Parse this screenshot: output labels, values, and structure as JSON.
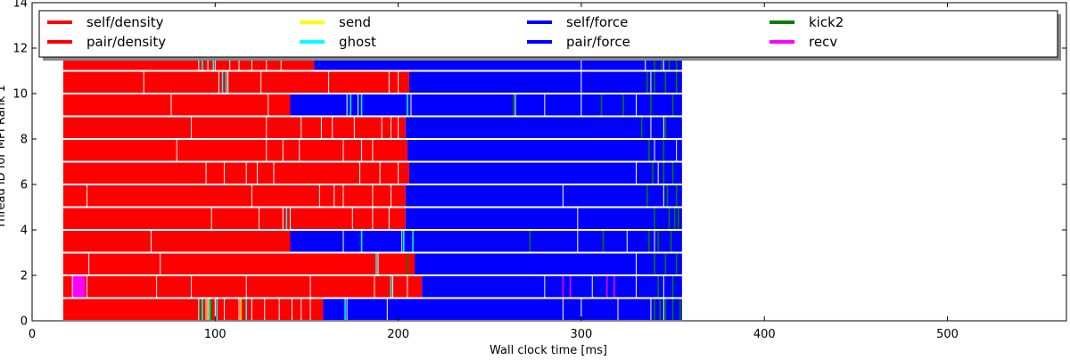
{
  "chart_data": {
    "type": "bar",
    "orientation": "horizontal",
    "layout": "task-timeline",
    "xlabel": "Wall clock time [ms]",
    "ylabel": "Thread ID for MPI Rank 1",
    "xlim": [
      0,
      565
    ],
    "ylim": [
      0,
      14
    ],
    "x_ticks": [
      0,
      100,
      200,
      300,
      400,
      500
    ],
    "y_ticks": [
      0,
      2,
      4,
      6,
      8,
      10,
      12,
      14
    ],
    "grid": false,
    "legend_position": "top",
    "legend": [
      {
        "name": "self/density",
        "color": "#ff0000"
      },
      {
        "name": "pair/density",
        "color": "#ff0000"
      },
      {
        "name": "send",
        "color": "#ffff00"
      },
      {
        "name": "ghost",
        "color": "#00ffff"
      },
      {
        "name": "self/force",
        "color": "#0000ff"
      },
      {
        "name": "pair/force",
        "color": "#0000ff"
      },
      {
        "name": "kick2",
        "color": "#008000"
      },
      {
        "name": "recv",
        "color": "#ff00ff"
      }
    ],
    "colors": {
      "density": "#ff0000",
      "force": "#0000ff",
      "send": "#ffff00",
      "ghost": "#00ffff",
      "kick2": "#008000",
      "recv": "#ff00ff"
    },
    "threads": [
      {
        "id": 0,
        "density": [
          17,
          159
        ],
        "force": [
          159,
          355
        ],
        "density_splits": [
          91,
          95,
          100,
          105,
          113,
          120,
          127,
          135,
          142,
          147,
          152
        ],
        "force_splits": [
          172,
          194,
          290,
          300,
          320,
          338,
          345
        ],
        "ghost_marks": [
          93,
          97,
          101,
          117,
          171
        ],
        "send_marks": [
          96,
          114
        ],
        "kick2_marks": [
          92,
          98,
          340,
          343,
          346,
          350,
          354
        ]
      },
      {
        "id": 1,
        "density": [
          17,
          213
        ],
        "force": [
          213,
          355
        ],
        "density_splits": [
          22,
          30,
          68,
          87,
          117,
          152,
          187,
          197,
          205
        ],
        "force_splits": [
          280,
          306,
          330,
          345
        ],
        "recv_blocks": [
          [
            22,
            29
          ]
        ],
        "recv_marks": [
          290,
          294,
          314,
          318
        ],
        "ghost_marks": [
          196
        ],
        "kick2_marks": [
          342,
          350
        ]
      },
      {
        "id": 2,
        "density": [
          17,
          209
        ],
        "force": [
          209,
          355
        ],
        "density_splits": [
          31,
          70,
          189,
          205
        ],
        "force_splits": [
          330,
          340
        ],
        "ghost_marks": [
          188
        ],
        "kick2_marks": [
          205,
          340,
          346,
          352
        ]
      },
      {
        "id": 3,
        "density": [
          17,
          141
        ],
        "force": [
          141,
          355
        ],
        "density_splits": [
          65
        ],
        "force_splits": [
          170,
          180,
          202,
          272,
          298,
          325,
          340
        ],
        "ghost_marks": [
          180,
          203,
          208
        ],
        "kick2_marks": [
          272,
          312,
          337,
          342,
          349
        ]
      },
      {
        "id": 4,
        "density": [
          17,
          204
        ],
        "force": [
          204,
          355
        ],
        "density_splits": [
          98,
          124,
          137,
          141,
          175,
          186,
          195
        ],
        "force_splits": [
          298,
          348
        ],
        "ghost_marks": [
          139
        ],
        "kick2_marks": [
          340,
          348,
          351,
          353
        ]
      },
      {
        "id": 5,
        "density": [
          17,
          204
        ],
        "force": [
          204,
          355
        ],
        "density_splits": [
          30,
          120,
          157,
          165,
          170,
          186,
          196
        ],
        "force_splits": [
          290,
          345
        ],
        "kick2_marks": [
          336,
          347,
          352
        ]
      },
      {
        "id": 6,
        "density": [
          17,
          206
        ],
        "force": [
          206,
          355
        ],
        "density_splits": [
          95,
          105,
          117,
          123,
          132,
          179,
          190,
          200
        ],
        "force_splits": [
          330,
          342
        ],
        "kick2_marks": [
          339,
          345,
          350
        ]
      },
      {
        "id": 7,
        "density": [
          17,
          205
        ],
        "force": [
          205,
          355
        ],
        "density_splits": [
          79,
          128,
          137,
          146,
          170,
          180,
          186
        ],
        "force_splits": [
          340,
          352
        ],
        "kick2_marks": [
          337,
          345
        ]
      },
      {
        "id": 8,
        "density": [
          17,
          204
        ],
        "force": [
          204,
          355
        ],
        "density_splits": [
          87,
          128,
          147,
          158,
          164,
          176,
          191,
          196,
          200
        ],
        "force_splits": [
          338,
          345
        ],
        "kick2_marks": [
          333,
          346
        ]
      },
      {
        "id": 9,
        "density": [
          17,
          141
        ],
        "force": [
          141,
          355
        ],
        "density_splits": [
          76,
          129
        ],
        "force_splits": [
          172,
          178,
          207,
          264,
          280,
          300,
          330
        ],
        "ghost_marks": [
          174,
          180,
          205
        ],
        "kick2_marks": [
          263,
          311,
          323,
          338,
          350
        ]
      },
      {
        "id": 10,
        "density": [
          17,
          206
        ],
        "force": [
          206,
          355
        ],
        "density_splits": [
          61,
          102,
          107,
          125,
          162,
          195,
          200
        ],
        "force_splits": [
          300,
          338
        ],
        "ghost_marks": [
          104,
          106
        ],
        "kick2_marks": [
          336,
          340,
          346,
          352
        ]
      },
      {
        "id": 11,
        "density": [
          17,
          154
        ],
        "force": [
          154,
          355
        ],
        "density_splits": [
          91,
          96,
          100,
          108,
          113,
          120,
          128,
          136
        ],
        "force_splits": [
          300,
          335,
          345
        ],
        "ghost_marks": [
          93,
          99
        ],
        "kick2_marks": [
          340,
          344,
          348,
          352
        ]
      }
    ]
  }
}
